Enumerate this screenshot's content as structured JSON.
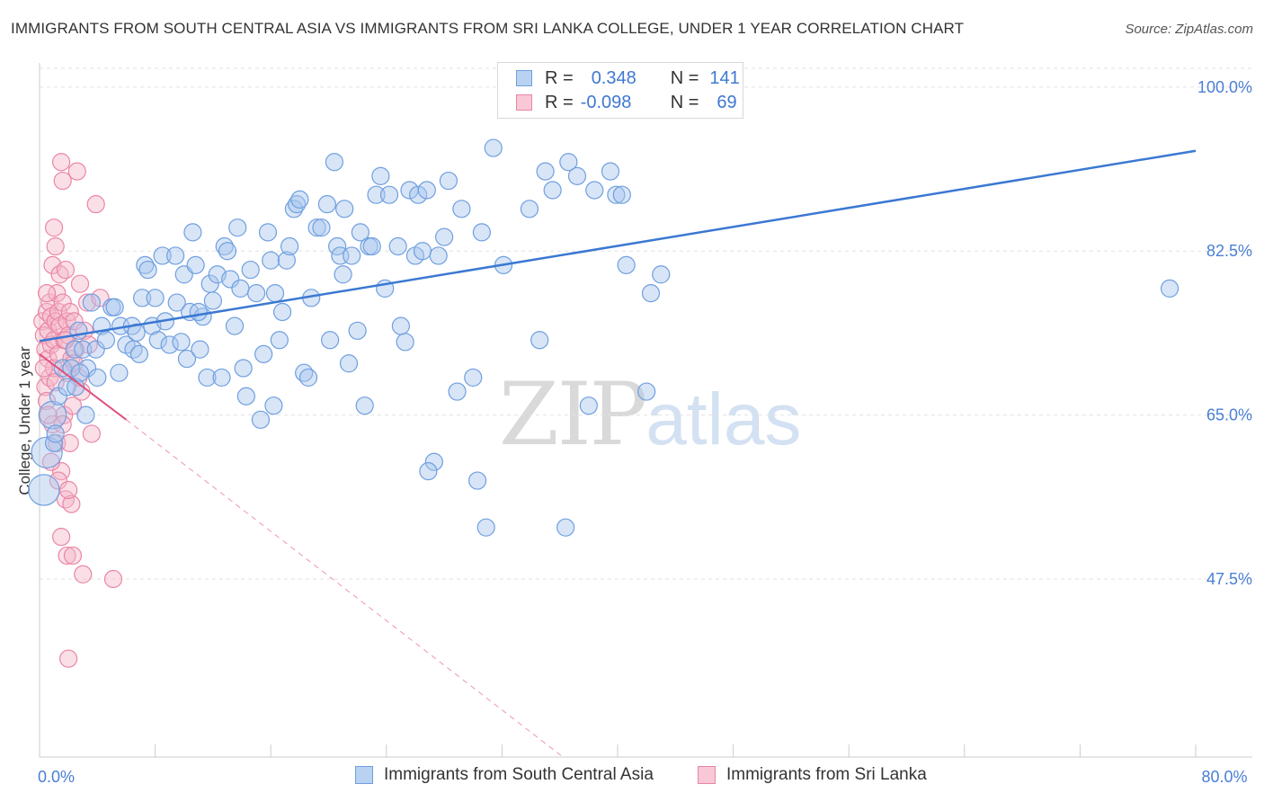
{
  "title": "IMMIGRANTS FROM SOUTH CENTRAL ASIA VS IMMIGRANTS FROM SRI LANKA COLLEGE, UNDER 1 YEAR CORRELATION CHART",
  "source": "Source: ZipAtlas.com",
  "watermark": {
    "zip": "ZIP",
    "atlas": "atlas"
  },
  "legend": {
    "rows": [
      {
        "r_label": "R =",
        "r_value": "0.348",
        "n_label": "N =",
        "n_value": "141"
      },
      {
        "r_label": "R =",
        "r_value": "-0.098",
        "n_label": "N =",
        "n_value": "69"
      }
    ]
  },
  "colors": {
    "blue_fill": "#a9c6ee",
    "blue_stroke": "#6f9fdf",
    "blue_line": "#3a78d2",
    "pink_fill": "#f5b7c9",
    "pink_stroke": "#ea86a5",
    "pink_line": "#e0507e",
    "grid": "#e2e2e2",
    "tick_text": "#4a7fd4"
  },
  "chart_data": {
    "type": "scatter",
    "title": "IMMIGRANTS FROM SOUTH CENTRAL ASIA VS IMMIGRANTS FROM SRI LANKA COLLEGE, UNDER 1 YEAR CORRELATION CHART",
    "xlabel": "",
    "ylabel": "College, Under 1 year",
    "xlim": [
      0,
      80
    ],
    "ylim": [
      28.5,
      102
    ],
    "x_ticks": [
      0,
      80
    ],
    "x_tick_labels": [
      "0.0%",
      "80.0%"
    ],
    "y_ticks": [
      47.5,
      65.0,
      82.5,
      100.0
    ],
    "y_tick_labels": [
      "47.5%",
      "65.0%",
      "82.5%",
      "100.0%"
    ],
    "grid": true,
    "legend_position": "top-center",
    "series": [
      {
        "name": "Immigrants from South Central Asia",
        "color": "#a9c6ee",
        "R": 0.348,
        "N": 141,
        "trend": {
          "x": [
            0,
            80
          ],
          "y": [
            72.9,
            93.2
          ],
          "style": "solid"
        },
        "points": [
          [
            0.3,
            57.0,
            9
          ],
          [
            0.5,
            61.0,
            9
          ],
          [
            0.9,
            65.0,
            8
          ],
          [
            1.0,
            62.0,
            5
          ],
          [
            1.1,
            63.0,
            5
          ],
          [
            1.3,
            67.0,
            5
          ],
          [
            1.6,
            70.0,
            5
          ],
          [
            1.9,
            68.0,
            5
          ],
          [
            2.2,
            70.0,
            5
          ],
          [
            2.4,
            72.0,
            5
          ],
          [
            2.5,
            68.0,
            5
          ],
          [
            2.7,
            74.0,
            5
          ],
          [
            3.0,
            72.0,
            5
          ],
          [
            3.2,
            65.0,
            5
          ],
          [
            3.3,
            70.0,
            5
          ],
          [
            3.6,
            77.0,
            5
          ],
          [
            3.9,
            72.0,
            5
          ],
          [
            4.3,
            74.5,
            5
          ],
          [
            4.6,
            73.0,
            5
          ],
          [
            5.0,
            76.5,
            5
          ],
          [
            5.2,
            76.5,
            5
          ],
          [
            5.6,
            74.5,
            5
          ],
          [
            6.0,
            72.5,
            5
          ],
          [
            6.4,
            74.5,
            5
          ],
          [
            6.5,
            72.0,
            5
          ],
          [
            6.7,
            73.8,
            5
          ],
          [
            6.9,
            71.5,
            5
          ],
          [
            7.1,
            77.5,
            5
          ],
          [
            7.3,
            81.0,
            5
          ],
          [
            7.5,
            80.5,
            5
          ],
          [
            7.8,
            74.5,
            5
          ],
          [
            8.0,
            77.5,
            5
          ],
          [
            8.2,
            73.0,
            5
          ],
          [
            8.5,
            82.0,
            5
          ],
          [
            8.7,
            75.0,
            5
          ],
          [
            9.0,
            72.5,
            5
          ],
          [
            9.4,
            82.0,
            5
          ],
          [
            9.8,
            72.8,
            5
          ],
          [
            10.0,
            80.0,
            5
          ],
          [
            10.2,
            71.0,
            5
          ],
          [
            10.4,
            76.0,
            5
          ],
          [
            10.6,
            84.5,
            5
          ],
          [
            10.8,
            81.0,
            5
          ],
          [
            11.1,
            72.0,
            5
          ],
          [
            11.3,
            75.5,
            5
          ],
          [
            11.6,
            69.0,
            5
          ],
          [
            11.8,
            79.0,
            5
          ],
          [
            12.0,
            77.2,
            5
          ],
          [
            12.3,
            80.0,
            5
          ],
          [
            12.6,
            69.0,
            5
          ],
          [
            12.8,
            83.0,
            5
          ],
          [
            13.0,
            82.5,
            5
          ],
          [
            13.2,
            79.5,
            5
          ],
          [
            13.5,
            74.5,
            5
          ],
          [
            13.9,
            78.5,
            5
          ],
          [
            14.1,
            70.0,
            5
          ],
          [
            14.3,
            67.0,
            5
          ],
          [
            14.6,
            80.5,
            5
          ],
          [
            15.0,
            78.0,
            5
          ],
          [
            15.3,
            64.5,
            5
          ],
          [
            15.5,
            71.5,
            5
          ],
          [
            15.8,
            84.5,
            5
          ],
          [
            16.0,
            81.5,
            5
          ],
          [
            16.3,
            78.0,
            5
          ],
          [
            16.6,
            73.0,
            5
          ],
          [
            16.8,
            76.0,
            5
          ],
          [
            17.1,
            81.5,
            5
          ],
          [
            17.3,
            83.0,
            5
          ],
          [
            17.6,
            87.0,
            5
          ],
          [
            17.8,
            87.5,
            5
          ],
          [
            18.0,
            88.0,
            5
          ],
          [
            18.3,
            69.5,
            5
          ],
          [
            18.6,
            69.0,
            5
          ],
          [
            18.8,
            77.5,
            5
          ],
          [
            19.2,
            85.0,
            5
          ],
          [
            19.5,
            85.0,
            5
          ],
          [
            19.9,
            87.5,
            5
          ],
          [
            20.1,
            73.0,
            5
          ],
          [
            20.4,
            92.0,
            5
          ],
          [
            20.6,
            83.0,
            5
          ],
          [
            20.8,
            82.0,
            5
          ],
          [
            21.1,
            87.0,
            5
          ],
          [
            21.4,
            70.5,
            5
          ],
          [
            21.6,
            82.0,
            5
          ],
          [
            22.0,
            74.0,
            5
          ],
          [
            22.2,
            84.5,
            5
          ],
          [
            22.5,
            66.0,
            5
          ],
          [
            22.8,
            83.0,
            5
          ],
          [
            23.0,
            83.0,
            5
          ],
          [
            23.3,
            88.5,
            5
          ],
          [
            23.6,
            90.5,
            5
          ],
          [
            23.9,
            78.5,
            5
          ],
          [
            24.2,
            88.5,
            5
          ],
          [
            24.8,
            83.0,
            5
          ],
          [
            25.0,
            74.5,
            5
          ],
          [
            25.3,
            72.8,
            5
          ],
          [
            25.6,
            89.0,
            5
          ],
          [
            26.0,
            82.0,
            5
          ],
          [
            26.2,
            88.5,
            5
          ],
          [
            26.5,
            82.5,
            5
          ],
          [
            26.8,
            89.0,
            5
          ],
          [
            27.3,
            60.0,
            5
          ],
          [
            27.6,
            82.0,
            5
          ],
          [
            28.0,
            84.0,
            5
          ],
          [
            28.3,
            90.0,
            5
          ],
          [
            26.9,
            59.0,
            5
          ],
          [
            28.9,
            67.5,
            5
          ],
          [
            29.2,
            87.0,
            5
          ],
          [
            30.0,
            69.0,
            5
          ],
          [
            30.3,
            58.0,
            5
          ],
          [
            30.6,
            84.5,
            5
          ],
          [
            30.9,
            53.0,
            5
          ],
          [
            31.4,
            93.5,
            5
          ],
          [
            32.1,
            81.0,
            5
          ],
          [
            33.1,
            99.0,
            5
          ],
          [
            33.9,
            87.0,
            5
          ],
          [
            34.6,
            73.0,
            5
          ],
          [
            35.0,
            91.0,
            5
          ],
          [
            35.5,
            89.0,
            5
          ],
          [
            36.4,
            53.0,
            5
          ],
          [
            36.6,
            92.0,
            5
          ],
          [
            37.2,
            90.5,
            5
          ],
          [
            38.0,
            66.0,
            5
          ],
          [
            38.4,
            89.0,
            5
          ],
          [
            38.6,
            99.0,
            5
          ],
          [
            39.5,
            91.0,
            5
          ],
          [
            39.9,
            88.5,
            5
          ],
          [
            40.3,
            88.5,
            5
          ],
          [
            40.6,
            81.0,
            5
          ],
          [
            42.0,
            67.5,
            5
          ],
          [
            42.3,
            78.0,
            5
          ],
          [
            43.0,
            80.0,
            5
          ],
          [
            78.2,
            78.5,
            5
          ],
          [
            2.8,
            69.5,
            5
          ],
          [
            4.0,
            69.0,
            5
          ],
          [
            5.5,
            69.5,
            5
          ],
          [
            9.5,
            77.0,
            5
          ],
          [
            11.0,
            76.0,
            5
          ],
          [
            13.7,
            85.0,
            5
          ],
          [
            16.2,
            66.0,
            5
          ],
          [
            21.0,
            80.0,
            5
          ]
        ]
      },
      {
        "name": "Immigrants from Sri Lanka",
        "color": "#f5b7c9",
        "R": -0.098,
        "N": 69,
        "trend": {
          "x": [
            0,
            6
          ],
          "y": [
            71.5,
            64.5
          ],
          "style": "solid",
          "dashed_extension": {
            "x": [
              6,
              40
            ],
            "y": [
              64.5,
              24.0
            ]
          }
        },
        "points": [
          [
            0.2,
            75.0,
            5
          ],
          [
            0.3,
            73.5,
            5
          ],
          [
            0.4,
            72.0,
            5
          ],
          [
            0.4,
            68.0,
            5
          ],
          [
            0.5,
            76.0,
            5
          ],
          [
            0.5,
            66.5,
            5
          ],
          [
            0.6,
            74.0,
            5
          ],
          [
            0.6,
            71.0,
            5
          ],
          [
            0.7,
            77.0,
            5
          ],
          [
            0.7,
            69.0,
            5
          ],
          [
            0.8,
            75.5,
            5
          ],
          [
            0.8,
            72.5,
            5
          ],
          [
            0.9,
            81.0,
            5
          ],
          [
            0.9,
            64.0,
            5
          ],
          [
            1.0,
            85.0,
            5
          ],
          [
            1.0,
            73.0,
            5
          ],
          [
            1.0,
            70.0,
            5
          ],
          [
            1.1,
            83.0,
            5
          ],
          [
            1.1,
            75.0,
            5
          ],
          [
            1.2,
            78.0,
            5
          ],
          [
            1.2,
            62.0,
            5
          ],
          [
            1.3,
            76.0,
            5
          ],
          [
            1.3,
            71.5,
            5
          ],
          [
            1.4,
            80.0,
            5
          ],
          [
            1.4,
            74.5,
            5
          ],
          [
            1.5,
            92.0,
            5
          ],
          [
            1.5,
            59.0,
            5
          ],
          [
            1.5,
            52.0,
            5
          ],
          [
            1.6,
            90.0,
            5
          ],
          [
            1.6,
            77.0,
            5
          ],
          [
            1.7,
            73.0,
            5
          ],
          [
            1.7,
            65.0,
            5
          ],
          [
            1.8,
            80.5,
            5
          ],
          [
            1.8,
            56.0,
            5
          ],
          [
            1.9,
            75.0,
            5
          ],
          [
            1.9,
            69.5,
            5
          ],
          [
            1.9,
            50.0,
            5
          ],
          [
            2.0,
            39.0,
            5
          ],
          [
            2.0,
            73.5,
            5
          ],
          [
            2.1,
            76.0,
            5
          ],
          [
            2.1,
            62.0,
            5
          ],
          [
            2.2,
            71.0,
            5
          ],
          [
            2.2,
            55.5,
            5
          ],
          [
            2.3,
            66.0,
            5
          ],
          [
            2.3,
            50.0,
            5
          ],
          [
            2.4,
            75.0,
            5
          ],
          [
            2.5,
            72.0,
            5
          ],
          [
            2.6,
            91.0,
            5
          ],
          [
            2.8,
            79.0,
            5
          ],
          [
            2.9,
            67.5,
            5
          ],
          [
            3.0,
            48.0,
            5
          ],
          [
            3.1,
            74.0,
            5
          ],
          [
            3.3,
            77.0,
            5
          ],
          [
            3.6,
            63.0,
            5
          ],
          [
            3.9,
            87.5,
            5
          ],
          [
            0.3,
            70.0,
            5
          ],
          [
            0.5,
            78.0,
            5
          ],
          [
            0.6,
            65.0,
            5
          ],
          [
            0.8,
            60.0,
            5
          ],
          [
            1.1,
            68.5,
            5
          ],
          [
            1.3,
            58.0,
            5
          ],
          [
            1.6,
            64.0,
            5
          ],
          [
            1.8,
            73.0,
            5
          ],
          [
            2.0,
            57.0,
            5
          ],
          [
            2.4,
            70.5,
            5
          ],
          [
            2.7,
            69.0,
            5
          ],
          [
            3.4,
            72.5,
            5
          ],
          [
            4.2,
            77.5,
            5
          ],
          [
            5.1,
            47.5,
            5
          ]
        ]
      }
    ]
  }
}
